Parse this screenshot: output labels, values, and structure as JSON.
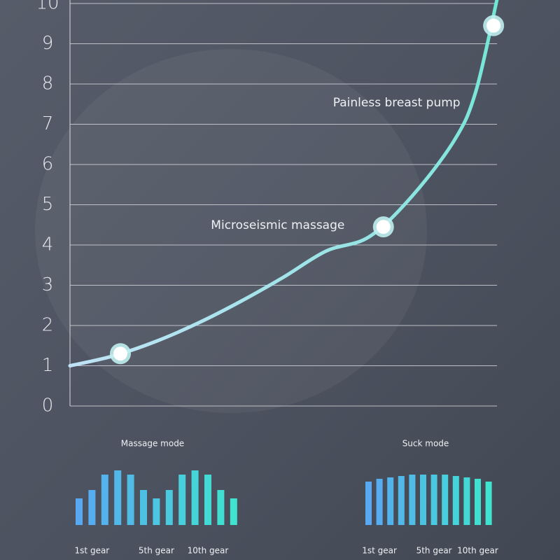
{
  "chart_data": [
    {
      "type": "line",
      "xlim": [
        0,
        10
      ],
      "ylim": [
        0,
        10
      ],
      "yticks": [
        0,
        1,
        2,
        3,
        4,
        5,
        6,
        7,
        8,
        9,
        10
      ],
      "grid": true,
      "series": [
        {
          "color": "#9fdcf0",
          "x": [
            0,
            1,
            2,
            3,
            4,
            5,
            6,
            7,
            8,
            9,
            9.5,
            10
          ],
          "values": [
            1.0,
            1.24,
            1.6,
            2.06,
            2.6,
            3.2,
            3.85,
            4.2,
            5.2,
            6.6,
            7.8,
            10.1
          ]
        },
        {
          "color": "#ffffff",
          "x": [
            1.18,
            7.34,
            9.92
          ],
          "values": [
            1.3,
            4.45,
            9.45
          ]
        }
      ],
      "annotations": [
        {
          "text": "Microseismic massage",
          "x": 3.3,
          "y": 4.45
        },
        {
          "text": "Painless breast pump",
          "x": 6.16,
          "y": 7.5
        }
      ]
    },
    {
      "type": "bar",
      "title": "Massage mode",
      "colors": [
        "#58a8f2",
        "#3fe3cf"
      ],
      "categories": [
        null,
        "1st gear",
        null,
        null,
        null,
        null,
        "5th gear",
        null,
        null,
        null,
        "10th gear",
        null,
        null
      ],
      "values": [
        38,
        50,
        72,
        78,
        72,
        50,
        38,
        50,
        72,
        78,
        72,
        50,
        38
      ]
    },
    {
      "type": "bar",
      "title": "Suck mode",
      "colors": [
        "#58a8f2",
        "#3fe3cf"
      ],
      "categories": [
        null,
        "1st gear",
        null,
        null,
        null,
        null,
        "5th gear",
        null,
        null,
        null,
        "10th gear",
        null
      ],
      "values": [
        62,
        66,
        68,
        70,
        72,
        72,
        72,
        72,
        70,
        68,
        66,
        62
      ]
    }
  ]
}
